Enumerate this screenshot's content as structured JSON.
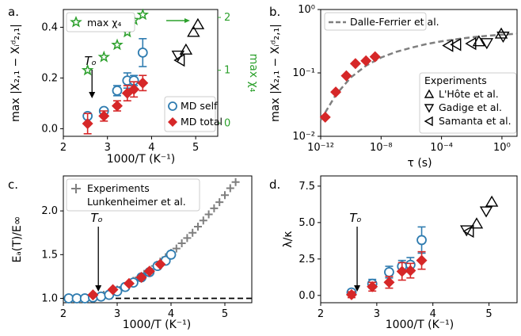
{
  "colors": {
    "md_self": "#2f7cb0",
    "md_total": "#d62728",
    "max_chi4": "#2ca02c",
    "experiments": "#000000",
    "fit": "#7f7f7f",
    "lunkenheimer": "#7f7f7f"
  },
  "chart_data": [
    {
      "type": "scatter",
      "panel_label": "a.",
      "xlabel": "1000/T (K⁻¹)",
      "ylabel": "max |X₂,₁ − Xᵢᵈ₂,₁|",
      "y2label": "max χ₄",
      "xlim": [
        2,
        5.5
      ],
      "ylim": [
        -0.03,
        0.47
      ],
      "y2lim": [
        -0.25,
        2.15
      ],
      "xticks": [
        "2",
        "3",
        "4",
        "5"
      ],
      "yticks": [
        "0.0",
        "0.2",
        "0.4"
      ],
      "y2ticks": [
        "0",
        "1",
        "2"
      ],
      "annotation": "Tₒ",
      "annotation_x": 2.65,
      "legend": [
        "MD self",
        "MD total"
      ],
      "legend_chi4": "max χ₄",
      "series": [
        {
          "name": "MD self",
          "marker": "circle-open",
          "x": [
            2.55,
            2.92,
            3.22,
            3.45,
            3.6,
            3.8
          ],
          "y": [
            0.05,
            0.07,
            0.15,
            0.19,
            0.19,
            0.3
          ],
          "yerr": [
            0.01,
            0.01,
            0.02,
            0.03,
            0.02,
            0.055
          ]
        },
        {
          "name": "MD total",
          "marker": "diamond",
          "x": [
            2.55,
            2.92,
            3.22,
            3.45,
            3.6,
            3.8
          ],
          "y": [
            0.02,
            0.05,
            0.09,
            0.14,
            0.155,
            0.18
          ],
          "yerr": [
            0.04,
            0.02,
            0.02,
            0.03,
            0.03,
            0.03
          ]
        },
        {
          "name": "max χ₄",
          "marker": "star",
          "axis": "right",
          "x": [
            2.55,
            2.92,
            3.22,
            3.45,
            3.6,
            3.8
          ],
          "y": [
            1.0,
            1.25,
            1.48,
            1.72,
            1.95,
            2.05
          ]
        },
        {
          "name": "experiments",
          "marker": "triangles",
          "x": [
            4.6,
            4.65,
            4.78,
            4.95,
            5.05
          ],
          "y": [
            0.29,
            0.27,
            0.31,
            0.38,
            0.41
          ]
        }
      ]
    },
    {
      "type": "scatter",
      "panel_label": "b.",
      "xlabel": "τ (s)",
      "ylabel": "max |X₂,₁ − Xᵢᵈ₂,₁|",
      "xscale": "log",
      "yscale": "log",
      "xlim": [
        1e-12,
        10
      ],
      "ylim": [
        0.01,
        1
      ],
      "xticks": [
        "10⁻¹²",
        "10⁻⁸",
        "10⁻⁴",
        "10⁰"
      ],
      "yticks": [
        "10⁻²",
        "10⁻¹",
        "10⁰"
      ],
      "fit_label": "Dalle-Ferrier et al.",
      "legend_title": "Experiments",
      "legend": [
        "L'Hôte et al.",
        "Gadige et al.",
        "Samanta et al."
      ],
      "series": [
        {
          "name": "MD total",
          "marker": "diamond",
          "x": [
            2e-12,
            1e-11,
            5e-11,
            2e-10,
            1e-09,
            4e-09
          ],
          "y": [
            0.02,
            0.05,
            0.09,
            0.14,
            0.155,
            0.18
          ]
        },
        {
          "name": "L'Hôte et al.",
          "marker": "triangle-up",
          "x": [
            0.03,
            0.9
          ],
          "y": [
            0.31,
            0.41
          ]
        },
        {
          "name": "Gadige et al.",
          "marker": "triangle-down",
          "x": [
            0.1,
            1.2
          ],
          "y": [
            0.3,
            0.38
          ]
        },
        {
          "name": "Samanta et al.",
          "marker": "triangle-left",
          "x": [
            0.0003,
            0.001,
            0.01
          ],
          "y": [
            0.27,
            0.28,
            0.29
          ]
        }
      ],
      "fit": {
        "x": [
          1e-12,
          1e-11,
          1e-10,
          1e-09,
          1e-08,
          1e-07,
          1e-06,
          1e-05,
          0.0001,
          0.001,
          0.01,
          0.1,
          1,
          10
        ],
        "y": [
          0.018,
          0.045,
          0.085,
          0.13,
          0.175,
          0.215,
          0.25,
          0.285,
          0.315,
          0.34,
          0.365,
          0.385,
          0.4,
          0.415
        ]
      }
    },
    {
      "type": "scatter",
      "panel_label": "c.",
      "xlabel": "1000/T (K⁻¹)",
      "ylabel": "Eₐ(T)/E∞",
      "xlim": [
        2,
        5.5
      ],
      "ylim": [
        0.95,
        2.4
      ],
      "xticks": [
        "2",
        "3",
        "4",
        "5"
      ],
      "yticks": [
        "1.0",
        "1.5",
        "2.0"
      ],
      "annotation": "Tₒ",
      "annotation_x": 2.65,
      "legend": [
        "Experiments",
        "Lunkenheimer et al."
      ],
      "series": [
        {
          "name": "Experiments",
          "marker": "plus",
          "x": [
            2.2,
            2.4,
            2.6,
            2.75,
            2.9,
            3.0,
            3.1,
            3.2,
            3.3,
            3.4,
            3.5,
            3.6,
            3.7,
            3.8,
            3.9,
            4.0,
            4.1,
            4.2,
            4.3,
            4.4,
            4.5,
            4.6,
            4.7,
            4.8,
            4.9,
            5.0,
            5.1,
            5.2
          ],
          "y": [
            1.0,
            1.0,
            1.02,
            1.04,
            1.07,
            1.1,
            1.13,
            1.16,
            1.2,
            1.24,
            1.28,
            1.32,
            1.37,
            1.42,
            1.47,
            1.52,
            1.57,
            1.63,
            1.69,
            1.75,
            1.82,
            1.89,
            1.96,
            2.03,
            2.1,
            2.18,
            2.26,
            2.33
          ]
        },
        {
          "name": "MD self",
          "marker": "circle-open",
          "x": [
            2.1,
            2.25,
            2.4,
            2.55,
            2.7,
            2.85,
            3.0,
            3.15,
            3.3,
            3.45,
            3.6,
            3.75,
            3.9,
            4.0
          ],
          "y": [
            1.0,
            1.0,
            1.0,
            1.01,
            1.02,
            1.04,
            1.08,
            1.13,
            1.18,
            1.24,
            1.3,
            1.37,
            1.43,
            1.5
          ]
        },
        {
          "name": "MD total",
          "marker": "diamond",
          "x": [
            2.55,
            2.92,
            3.22,
            3.45,
            3.6,
            3.8
          ],
          "y": [
            1.04,
            1.1,
            1.17,
            1.24,
            1.31,
            1.39
          ]
        }
      ],
      "hline": 1.0
    },
    {
      "type": "scatter",
      "panel_label": "d.",
      "xlabel": "1000/T (K⁻¹)",
      "ylabel": "λ/κ",
      "xlim": [
        2,
        5.5
      ],
      "ylim": [
        -0.5,
        8.2
      ],
      "xticks": [
        "2",
        "3",
        "4",
        "5"
      ],
      "yticks": [
        "0.0",
        "2.5",
        "5.0",
        "7.5"
      ],
      "annotation": "Tₒ",
      "annotation_x": 2.65,
      "series": [
        {
          "name": "MD self",
          "marker": "circle-open",
          "x": [
            2.55,
            2.92,
            3.22,
            3.45,
            3.6,
            3.8
          ],
          "y": [
            0.2,
            0.8,
            1.6,
            2.0,
            2.1,
            3.8
          ],
          "yerr": [
            0.2,
            0.3,
            0.4,
            0.4,
            0.5,
            0.9
          ]
        },
        {
          "name": "MD total",
          "marker": "diamond",
          "x": [
            2.55,
            2.92,
            3.22,
            3.45,
            3.6,
            3.8
          ],
          "y": [
            0.05,
            0.6,
            0.9,
            1.65,
            1.7,
            2.4
          ],
          "yerr": [
            0.2,
            0.3,
            0.4,
            0.6,
            0.5,
            0.6
          ]
        },
        {
          "name": "experiments",
          "marker": "triangles",
          "x": [
            4.6,
            4.65,
            4.78,
            4.95,
            5.05
          ],
          "y": [
            4.5,
            4.4,
            4.9,
            5.8,
            6.4
          ]
        }
      ]
    }
  ]
}
